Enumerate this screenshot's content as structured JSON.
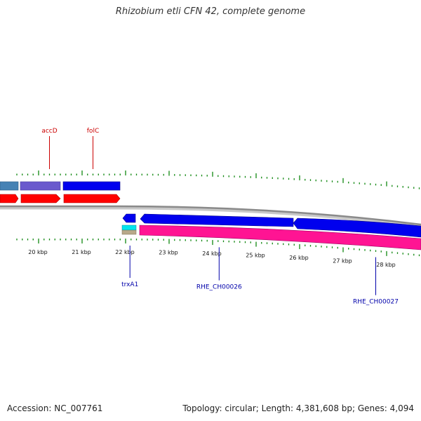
{
  "title": "Rhizobium etli CFN 42, complete genome",
  "footer": {
    "accession": "Accession: NC_007761",
    "summary": "Topology: circular; Length: 4,381,608 bp; Genes: 4,094"
  },
  "colors": {
    "backbone": "#8a8a8a",
    "tick": "#118811",
    "forward_label": "#cc0000",
    "reverse_label": "#0000aa",
    "cds_blue": "#0000ee",
    "gene_red": "#ff0000",
    "gene_pink": "#ff1493",
    "steel_blue": "#4682b4",
    "slate_purple": "#6a5acd",
    "cyan": "#00e5ee",
    "tan": "#b8a98a"
  },
  "chart_data": {
    "type": "genome-map",
    "axis_unit": "kbp",
    "ticks": [
      {
        "kbp": 20,
        "label": "20 kbp"
      },
      {
        "kbp": 21,
        "label": "21 kbp"
      },
      {
        "kbp": 22,
        "label": "22 kbp"
      },
      {
        "kbp": 23,
        "label": "23 kbp"
      },
      {
        "kbp": 24,
        "label": "24 kbp"
      },
      {
        "kbp": 25,
        "label": "25 kbp"
      },
      {
        "kbp": 26,
        "label": "26 kbp"
      },
      {
        "kbp": 27,
        "label": "27 kbp"
      },
      {
        "kbp": 28,
        "label": "28 kbp"
      }
    ],
    "gene_labels": [
      {
        "name": "accD",
        "strand": "forward",
        "kbp": 20.25
      },
      {
        "name": "folC",
        "strand": "forward",
        "kbp": 21.25
      },
      {
        "name": "trxA1",
        "strand": "reverse",
        "kbp": 22.1
      },
      {
        "name": "RHE_CH00026",
        "strand": "reverse",
        "kbp": 24.15
      },
      {
        "name": "RHE_CH00027",
        "strand": "reverse",
        "kbp": 27.75
      }
    ]
  }
}
